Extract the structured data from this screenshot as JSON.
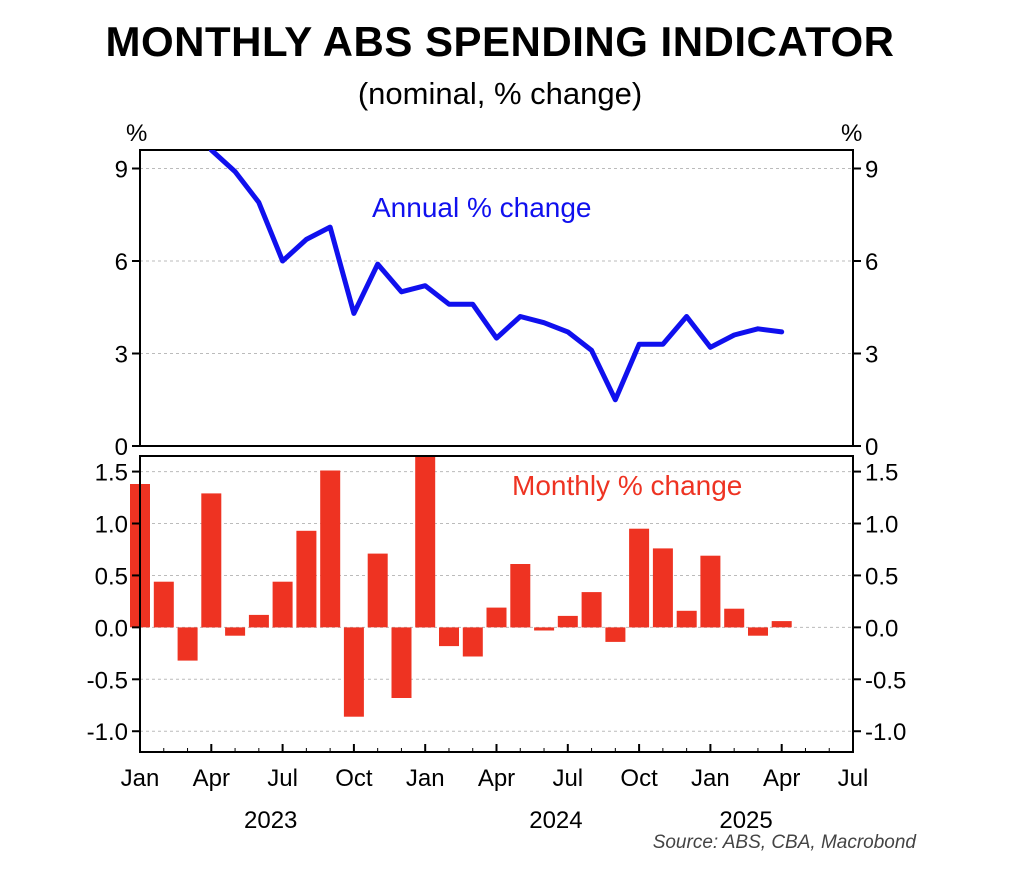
{
  "title": "MONTHLY ABS SPENDING INDICATOR",
  "subtitle": "(nominal, % change)",
  "source": "Source: ABS, CBA, Macrobond",
  "colors": {
    "annual": "#1010ee",
    "monthly": "#ee3322",
    "grid": "#bbbbbb"
  },
  "chart_data": [
    {
      "type": "line",
      "panel": "top",
      "unit_left": "%",
      "unit_right": "%",
      "ylim": [
        0,
        9.6
      ],
      "yticks": [
        "0",
        "3",
        "6",
        "9"
      ],
      "grid": true,
      "series": [
        {
          "name": "Annual % change",
          "x": [
            "2023-01",
            "2023-02",
            "2023-03",
            "2023-04",
            "2023-05",
            "2023-06",
            "2023-07",
            "2023-08",
            "2023-09",
            "2023-10",
            "2023-11",
            "2023-12",
            "2024-01",
            "2024-02",
            "2024-03",
            "2024-04",
            "2024-05",
            "2024-06",
            "2024-07",
            "2024-08",
            "2024-09",
            "2024-10",
            "2024-11",
            "2024-12",
            "2025-01",
            "2025-02",
            "2025-03",
            "2025-04"
          ],
          "values": [
            null,
            null,
            null,
            10.0,
            8.9,
            7.9,
            6.0,
            6.7,
            7.1,
            4.3,
            5.9,
            5.0,
            5.2,
            4.6,
            4.6,
            3.5,
            4.2,
            4.0,
            3.7,
            3.1,
            1.5,
            3.3,
            3.3,
            4.2,
            3.2,
            3.6,
            3.8,
            3.7
          ]
        }
      ]
    },
    {
      "type": "bar",
      "panel": "bottom",
      "ylim": [
        -1.2,
        1.65
      ],
      "yticks": [
        "-1.0",
        "-0.5",
        "0.0",
        "0.5",
        "1.0",
        "1.5"
      ],
      "grid": true,
      "xticks": [
        "Jan",
        "Apr",
        "Jul",
        "Oct",
        "Jan",
        "Apr",
        "Jul",
        "Oct",
        "Jan",
        "Apr",
        "Jul"
      ],
      "years": [
        "2023",
        "2024",
        "2025"
      ],
      "series": [
        {
          "name": "Monthly % change",
          "x": [
            "2023-01",
            "2023-02",
            "2023-03",
            "2023-04",
            "2023-05",
            "2023-06",
            "2023-07",
            "2023-08",
            "2023-09",
            "2023-10",
            "2023-11",
            "2023-12",
            "2024-01",
            "2024-02",
            "2024-03",
            "2024-04",
            "2024-05",
            "2024-06",
            "2024-07",
            "2024-08",
            "2024-09",
            "2024-10",
            "2024-11",
            "2024-12",
            "2025-01",
            "2025-02",
            "2025-03",
            "2025-04"
          ],
          "values": [
            1.38,
            0.44,
            -0.32,
            1.29,
            -0.08,
            0.12,
            0.44,
            0.93,
            1.51,
            -0.86,
            0.71,
            -0.68,
            1.65,
            -0.18,
            -0.28,
            0.19,
            0.61,
            -0.03,
            0.11,
            0.34,
            -0.14,
            0.95,
            0.76,
            0.16,
            0.69,
            0.18,
            -0.08,
            0.06
          ]
        }
      ]
    }
  ]
}
